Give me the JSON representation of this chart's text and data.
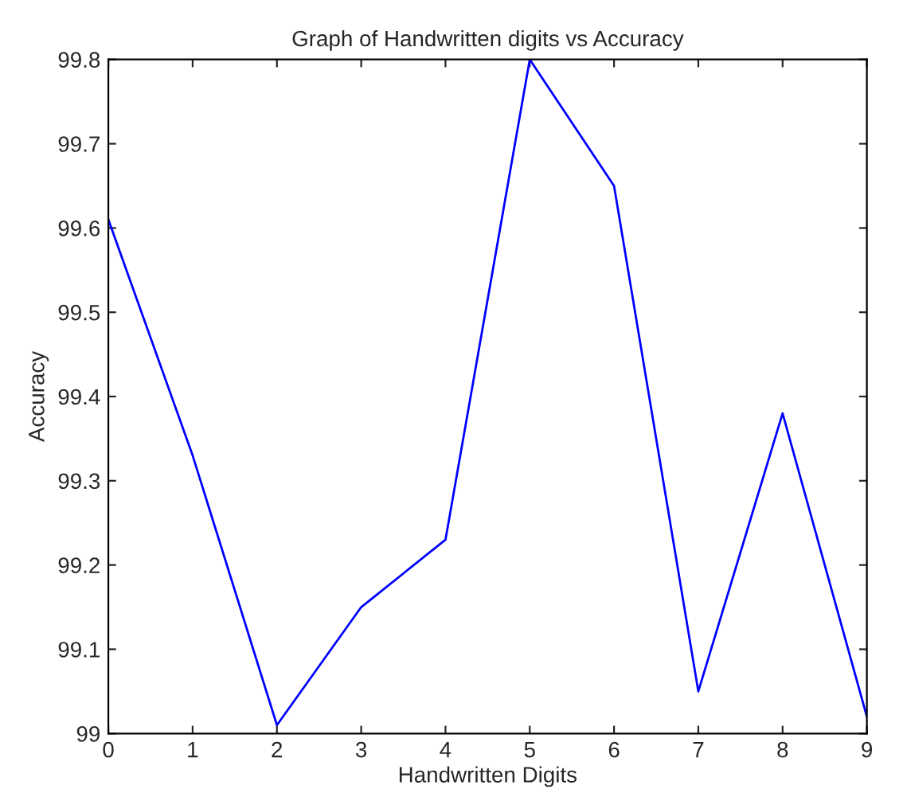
{
  "chart_data": {
    "type": "line",
    "title": "Graph of Handwritten digits vs Accuracy",
    "xlabel": "Handwritten Digits",
    "ylabel": "Accuracy",
    "x": [
      0,
      1,
      2,
      3,
      4,
      5,
      6,
      7,
      8,
      9
    ],
    "series": [
      {
        "color": "#0000ff",
        "values": [
          99.61,
          99.33,
          99.01,
          99.15,
          99.23,
          99.8,
          99.65,
          99.05,
          99.38,
          99.02
        ]
      }
    ],
    "xlim": [
      0,
      9
    ],
    "xticks": [
      0,
      1,
      2,
      3,
      4,
      5,
      6,
      7,
      8,
      9
    ],
    "ylim": [
      99,
      99.8
    ],
    "yticks": [
      {
        "value": 99,
        "label": "99"
      },
      99.1,
      99.2,
      99.3,
      99.4,
      99.5,
      99.6,
      99.7,
      99.8
    ],
    "grid": false,
    "marker": "none",
    "line_style": "solid"
  }
}
